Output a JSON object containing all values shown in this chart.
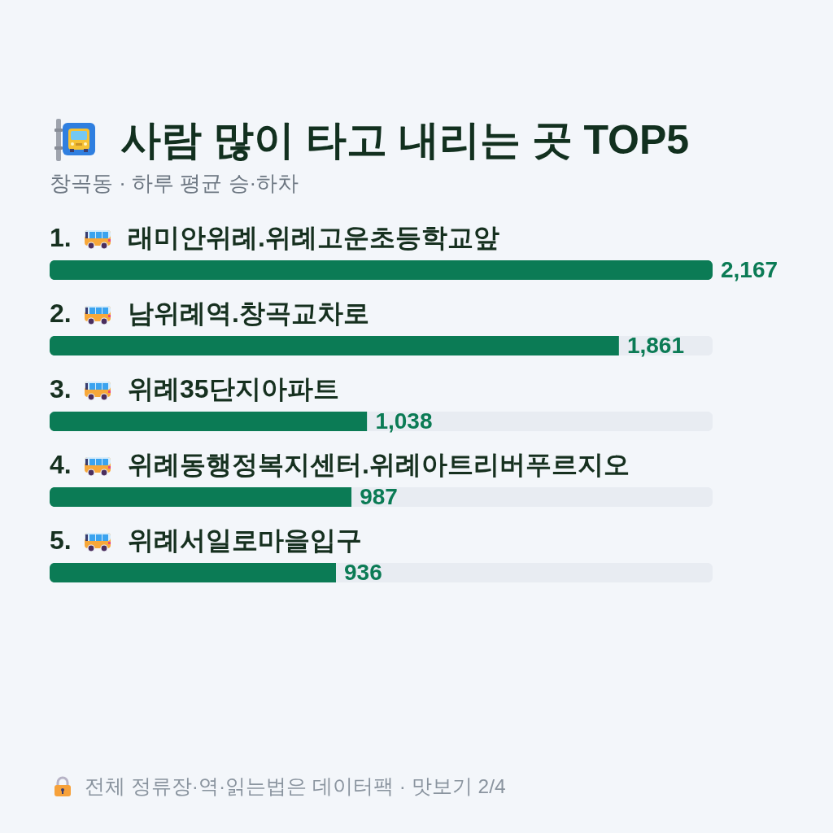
{
  "chart_data": {
    "type": "bar",
    "orientation": "horizontal",
    "title": "사람 많이 타고 내리는 곳 TOP5",
    "subtitle": "창곡동 · 하루 평균 승·하차",
    "categories": [
      "1. 래미안위례.위례고운초등학교앞",
      "2. 남위례역.창곡교차로",
      "3. 위례35단지아파트",
      "4. 위례동행정복지센터.위례아트리버푸르지오",
      "5. 위례서일로마을입구"
    ],
    "values": [
      2167,
      1861,
      1038,
      987,
      936
    ],
    "value_labels": [
      "2,167",
      "1,861",
      "1,038",
      "987",
      "936"
    ],
    "color": "#0b7b55",
    "annotations": [
      "전체 정류장·역·읽는법은 데이터팩 · 맛보기 2/4"
    ]
  }
}
